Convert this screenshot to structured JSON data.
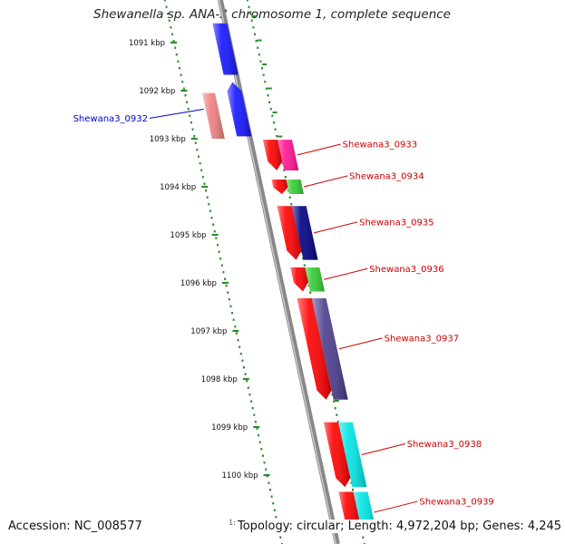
{
  "title": "Shewanella sp. ANA-3 chromosome 1, complete sequence",
  "accession": "Accession: NC_008577",
  "summary": "Topology: circular; Length: 4,972,204 bp; Genes: 4,245",
  "stub_label": "1:",
  "ticks": [
    {
      "label": "1091 kbp",
      "kbp": 1091
    },
    {
      "label": "1092 kbp",
      "kbp": 1092
    },
    {
      "label": "1093 kbp",
      "kbp": 1093
    },
    {
      "label": "1094 kbp",
      "kbp": 1094
    },
    {
      "label": "1095 kbp",
      "kbp": 1095
    },
    {
      "label": "1096 kbp",
      "kbp": 1096
    },
    {
      "label": "1097 kbp",
      "kbp": 1097
    },
    {
      "label": "1098 kbp",
      "kbp": 1098
    },
    {
      "label": "1099 kbp",
      "kbp": 1099
    },
    {
      "label": "1100 kbp",
      "kbp": 1100
    }
  ],
  "genes": [
    {
      "label": "",
      "strand": "+",
      "start": 1090.6,
      "end": 1091.67,
      "color": "#1414ff",
      "arrow": false
    },
    {
      "label": "Shewana3_0932",
      "strand": "+",
      "start": 1091.82,
      "end": 1092.95,
      "color": "#1414ff",
      "arrow": true
    },
    {
      "label": "",
      "strand": "+",
      "start": 1092.05,
      "end": 1093.0,
      "color": "#f08080",
      "arrow": false
    },
    {
      "label": "Shewana3_0933",
      "strand": "-",
      "start": 1093.02,
      "end": 1093.66,
      "color": "#ff1493",
      "arrow": false
    },
    {
      "label": "",
      "strand": "-",
      "start": 1093.02,
      "end": 1093.66,
      "color": "#ff0000",
      "arrow": true
    },
    {
      "label": "Shewana3_0934",
      "strand": "-",
      "start": 1093.85,
      "end": 1094.15,
      "color": "#33cc33",
      "arrow": false
    },
    {
      "label": "",
      "strand": "-",
      "start": 1093.85,
      "end": 1094.15,
      "color": "#ff0000",
      "arrow": true
    },
    {
      "label": "Shewana3_0935",
      "strand": "-",
      "start": 1094.4,
      "end": 1095.52,
      "color": "#000080",
      "arrow": false
    },
    {
      "label": "",
      "strand": "-",
      "start": 1094.4,
      "end": 1095.52,
      "color": "#ff0000",
      "arrow": true
    },
    {
      "label": "Shewana3_0936",
      "strand": "-",
      "start": 1095.68,
      "end": 1096.18,
      "color": "#33cc33",
      "arrow": false
    },
    {
      "label": "",
      "strand": "-",
      "start": 1095.68,
      "end": 1096.18,
      "color": "#ff0000",
      "arrow": true
    },
    {
      "label": "Shewana3_0937",
      "strand": "-",
      "start": 1096.32,
      "end": 1098.43,
      "color": "#4b3c8c",
      "arrow": false
    },
    {
      "label": "",
      "strand": "-",
      "start": 1096.32,
      "end": 1098.43,
      "color": "#ff0000",
      "arrow": true
    },
    {
      "label": "Shewana3_0938",
      "strand": "-",
      "start": 1098.9,
      "end": 1100.25,
      "color": "#00e5e5",
      "arrow": false
    },
    {
      "label": "",
      "strand": "-",
      "start": 1098.9,
      "end": 1100.25,
      "color": "#ff0000",
      "arrow": true
    },
    {
      "label": "Shewana3_0939",
      "strand": "-",
      "start": 1100.35,
      "end": 1101.2,
      "color": "#00e5e5",
      "arrow": false
    },
    {
      "label": "",
      "strand": "-",
      "start": 1100.35,
      "end": 1101.2,
      "color": "#ff0000",
      "arrow": true
    }
  ],
  "colors": {
    "backbone": "#888888",
    "tick_mark": "#2e8b2e",
    "plus_label": "#0000cc",
    "minus_label": "#cc0000"
  }
}
